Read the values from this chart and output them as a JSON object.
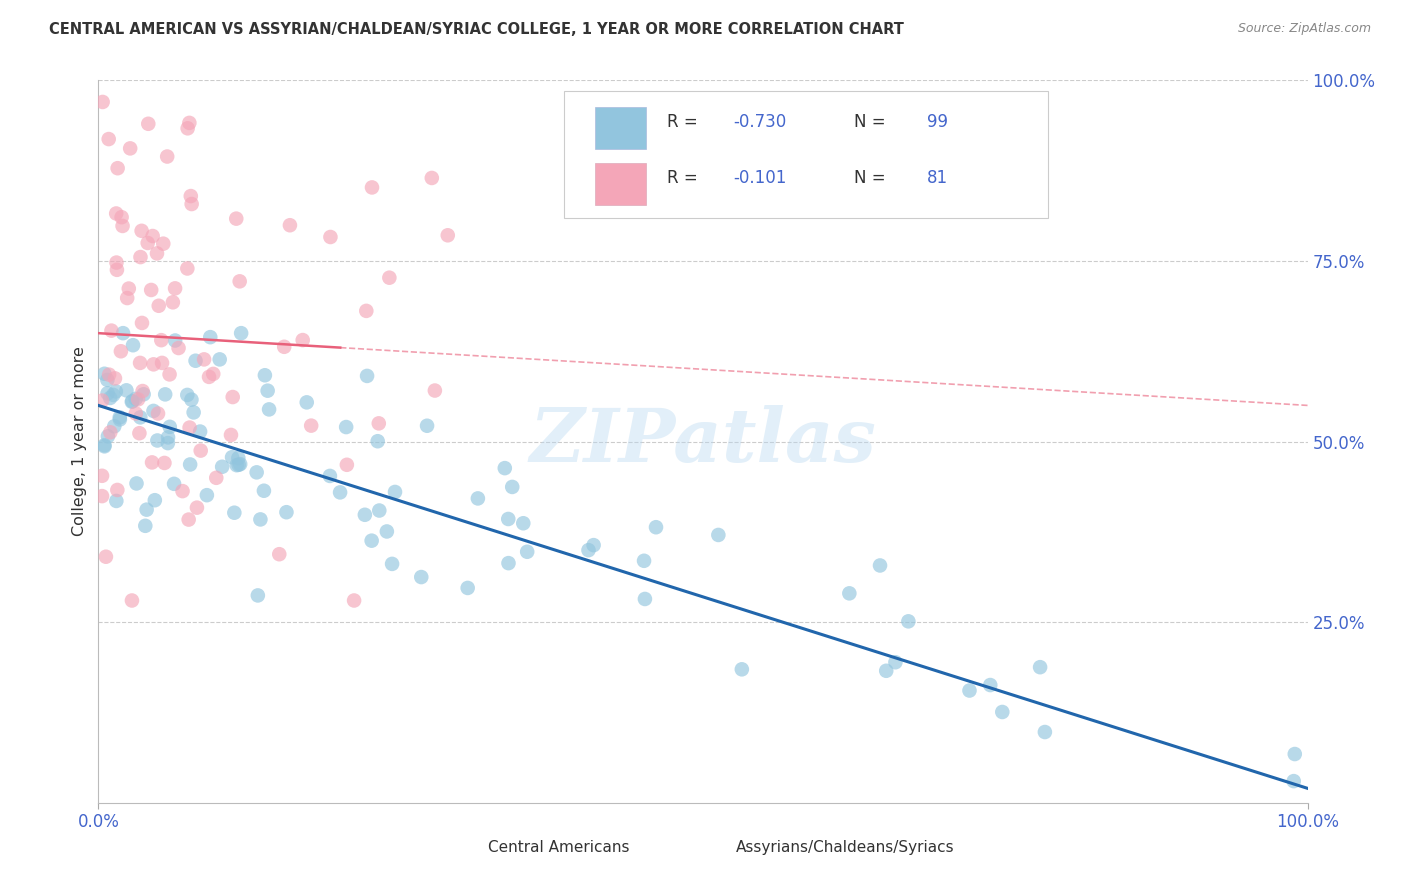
{
  "title": "CENTRAL AMERICAN VS ASSYRIAN/CHALDEAN/SYRIAC COLLEGE, 1 YEAR OR MORE CORRELATION CHART",
  "source": "Source: ZipAtlas.com",
  "ylabel": "College, 1 year or more",
  "watermark": "ZIPatlas",
  "blue_R": -0.73,
  "blue_N": 99,
  "pink_R": -0.101,
  "pink_N": 81,
  "blue_label": "Central Americans",
  "pink_label": "Assyrians/Chaldeans/Syriacs",
  "blue_color": "#92c5de",
  "pink_color": "#f4a6b8",
  "blue_line_color": "#2166ac",
  "pink_line_color": "#e8607a",
  "blue_trend_x0": 0,
  "blue_trend_y0": 55,
  "blue_trend_x1": 100,
  "blue_trend_y1": 2,
  "pink_trend_x0": 0,
  "pink_trend_y0": 65,
  "pink_trend_x1": 100,
  "pink_trend_y1": 55,
  "pink_solid_x1": 20,
  "xlim": [
    0,
    100
  ],
  "ylim": [
    0,
    100
  ],
  "xtick_positions": [
    0,
    100
  ],
  "xtick_labels": [
    "0.0%",
    "100.0%"
  ],
  "ytick_values_right": [
    25,
    50,
    75,
    100
  ],
  "ytick_labels_right": [
    "25.0%",
    "50.0%",
    "75.0%",
    "100.0%"
  ],
  "grid_color": "#cccccc",
  "background_color": "#ffffff",
  "title_color": "#333333",
  "source_color": "#888888",
  "tick_label_color": "#4466cc",
  "legend_R_color": "#4466cc",
  "legend_N_color": "#4466cc"
}
